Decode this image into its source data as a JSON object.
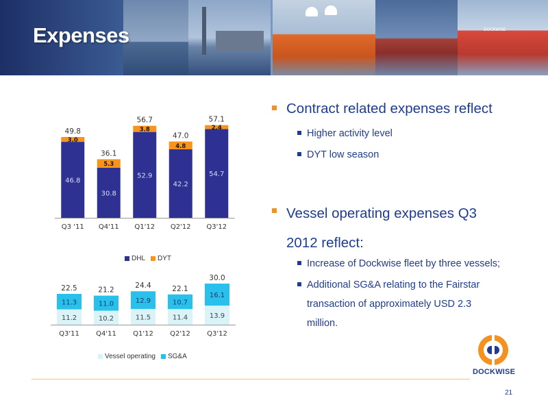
{
  "slide": {
    "title": "Expenses",
    "page_number": "21",
    "logo_text": "DOCKWISE"
  },
  "bullets": [
    {
      "text": "Contract related expenses reflect",
      "sub": [
        "Higher activity level",
        "DYT low season"
      ]
    },
    {
      "text": "Vessel operating expenses Q3 2012 reflect:",
      "sub": [
        "Increase of Dockwise fleet by three vessels;",
        "Additional SG&A relating to the Fairstar transaction of approximately USD 2.3 million."
      ]
    }
  ],
  "colors": {
    "accent_orange": "#f39220",
    "text_blue": "#1f3c8f",
    "dhl": "#2e3192",
    "dyt": "#f7941d",
    "vessel_operating": "#d9f3f8",
    "sga": "#29c1ec"
  },
  "chart_data": [
    {
      "type": "bar",
      "stacked": true,
      "categories": [
        "Q3 '11",
        "Q4'11",
        "Q1'12",
        "Q2'12",
        "Q3'12"
      ],
      "series": [
        {
          "name": "DHL",
          "values": [
            46.8,
            30.8,
            52.9,
            42.2,
            54.7
          ]
        },
        {
          "name": "DYT",
          "values": [
            3.0,
            5.3,
            3.8,
            4.8,
            2.4
          ]
        }
      ],
      "totals": [
        "49.8",
        "36.1",
        "56.7",
        "47.0",
        "57.1"
      ],
      "value_labels": {
        "DHL": [
          "46.8",
          "30.8",
          "52.9",
          "42.2",
          "54.7"
        ],
        "DYT": [
          "3.0",
          "5.3",
          "3.8",
          "4.8",
          "2.4"
        ]
      },
      "ylim": [
        0,
        60
      ],
      "legend": "bottom"
    },
    {
      "type": "bar",
      "stacked": true,
      "categories": [
        "Q3'11",
        "Q4'11",
        "Q1'12",
        "Q2'12",
        "Q3'12"
      ],
      "series": [
        {
          "name": "Vessel operating",
          "values": [
            11.2,
            10.2,
            11.5,
            11.4,
            13.9
          ]
        },
        {
          "name": "SG&A",
          "values": [
            11.3,
            11.0,
            12.9,
            10.7,
            16.1
          ]
        }
      ],
      "totals": [
        "22.5",
        "21.2",
        "24.4",
        "22.1",
        "30.0"
      ],
      "value_labels": {
        "Vessel operating": [
          "11.2",
          "10.2",
          "11.5",
          "11.4",
          "13.9"
        ],
        "SG&A": [
          "11.3",
          "11.0",
          "12.9",
          "10.7",
          "16.1"
        ]
      },
      "ylim": [
        0,
        32
      ],
      "legend": "bottom"
    }
  ]
}
